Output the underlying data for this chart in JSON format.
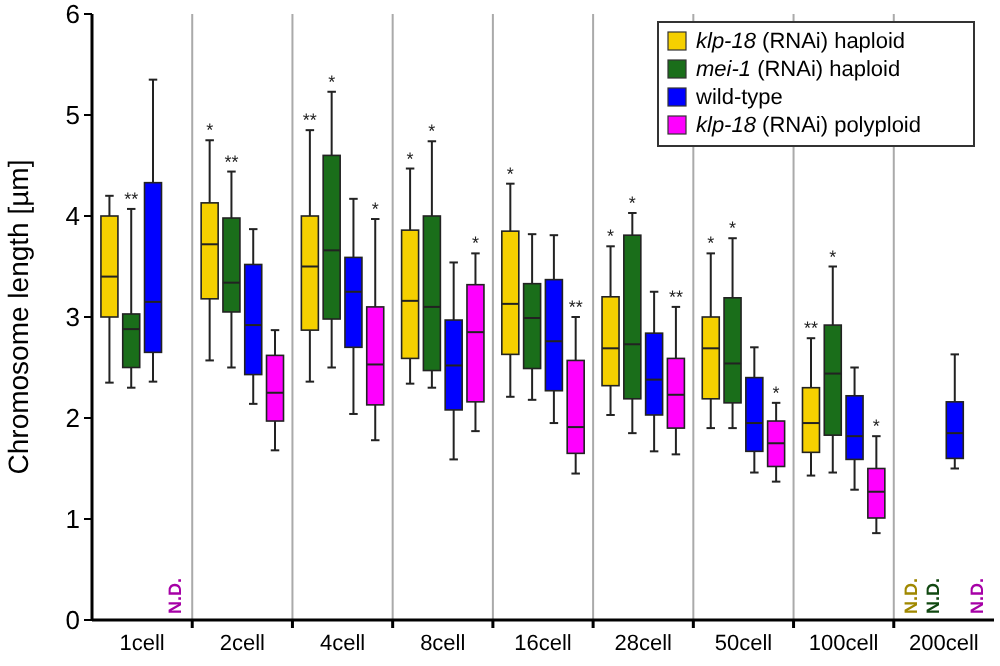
{
  "chart_data": {
    "type": "box",
    "ylabel": "Chromosome length [µm]",
    "categories": [
      "1cell",
      "2cell",
      "4cell",
      "8cell",
      "16cell",
      "28cell",
      "50cell",
      "100cell",
      "200cell"
    ],
    "ylim": [
      0,
      6
    ],
    "yticks": [
      0,
      1,
      2,
      3,
      4,
      5,
      6
    ],
    "grid": "x",
    "legend": "top right",
    "series": [
      {
        "name": "klp-18 (RNAi) haploid",
        "color": "#f5d000",
        "boxes": [
          {
            "low": 2.35,
            "q1": 3.0,
            "median": 3.4,
            "q3": 4.0,
            "high": 4.2
          },
          {
            "low": 2.57,
            "q1": 3.18,
            "median": 3.72,
            "q3": 4.13,
            "high": 4.75
          },
          {
            "low": 2.36,
            "q1": 2.87,
            "median": 3.5,
            "q3": 4.0,
            "high": 4.85
          },
          {
            "low": 2.34,
            "q1": 2.59,
            "median": 3.16,
            "q3": 3.86,
            "high": 4.47
          },
          {
            "low": 2.21,
            "q1": 2.63,
            "median": 3.13,
            "q3": 3.85,
            "high": 4.32
          },
          {
            "low": 2.03,
            "q1": 2.32,
            "median": 2.69,
            "q3": 3.2,
            "high": 3.7
          },
          {
            "low": 1.9,
            "q1": 2.19,
            "median": 2.69,
            "q3": 3.0,
            "high": 3.63
          },
          {
            "low": 1.43,
            "q1": 1.66,
            "median": 1.95,
            "q3": 2.3,
            "high": 2.79
          },
          null
        ],
        "value_labels": [
          null,
          "*",
          "**",
          "*",
          "*",
          "*",
          "*",
          "**",
          "N.D."
        ]
      },
      {
        "name": "mei-1 (RNAi) haploid",
        "color": "#1a6e1a",
        "boxes": [
          {
            "low": 2.3,
            "q1": 2.5,
            "median": 2.88,
            "q3": 3.03,
            "high": 4.07
          },
          {
            "low": 2.5,
            "q1": 3.05,
            "median": 3.34,
            "q3": 3.98,
            "high": 4.44
          },
          {
            "low": 2.5,
            "q1": 2.98,
            "median": 3.66,
            "q3": 4.6,
            "high": 5.23
          },
          {
            "low": 2.3,
            "q1": 2.47,
            "median": 3.1,
            "q3": 4.0,
            "high": 4.74
          },
          {
            "low": 2.18,
            "q1": 2.49,
            "median": 2.99,
            "q3": 3.33,
            "high": 3.82
          },
          {
            "low": 1.85,
            "q1": 2.19,
            "median": 2.73,
            "q3": 3.81,
            "high": 4.03
          },
          {
            "low": 1.9,
            "q1": 2.15,
            "median": 2.54,
            "q3": 3.19,
            "high": 3.78
          },
          {
            "low": 1.46,
            "q1": 1.83,
            "median": 2.44,
            "q3": 2.92,
            "high": 3.5
          },
          null
        ],
        "value_labels": [
          "**",
          "**",
          "*",
          "*",
          null,
          "*",
          "*",
          "*",
          "N.D."
        ]
      },
      {
        "name": "wild-type",
        "color": "#0000ff",
        "boxes": [
          {
            "low": 2.36,
            "q1": 2.65,
            "median": 3.15,
            "q3": 4.33,
            "high": 5.35
          },
          {
            "low": 2.14,
            "q1": 2.43,
            "median": 2.92,
            "q3": 3.52,
            "high": 3.87
          },
          {
            "low": 2.04,
            "q1": 2.7,
            "median": 3.25,
            "q3": 3.59,
            "high": 4.17
          },
          {
            "low": 1.59,
            "q1": 2.08,
            "median": 2.52,
            "q3": 2.97,
            "high": 3.54
          },
          {
            "low": 1.95,
            "q1": 2.27,
            "median": 2.76,
            "q3": 3.37,
            "high": 3.81
          },
          {
            "low": 1.67,
            "q1": 2.03,
            "median": 2.38,
            "q3": 2.84,
            "high": 3.25
          },
          {
            "low": 1.46,
            "q1": 1.67,
            "median": 1.95,
            "q3": 2.4,
            "high": 2.7
          },
          {
            "low": 1.29,
            "q1": 1.59,
            "median": 1.82,
            "q3": 2.22,
            "high": 2.5
          },
          {
            "low": 1.5,
            "q1": 1.6,
            "median": 1.85,
            "q3": 2.16,
            "high": 2.63
          }
        ]
      },
      {
        "name": "klp-18 (RNAi) polyploid",
        "color": "#ff00ff",
        "boxes": [
          null,
          {
            "low": 1.68,
            "q1": 1.97,
            "median": 2.25,
            "q3": 2.62,
            "high": 2.87
          },
          {
            "low": 1.78,
            "q1": 2.13,
            "median": 2.53,
            "q3": 3.1,
            "high": 3.97
          },
          {
            "low": 1.87,
            "q1": 2.16,
            "median": 2.85,
            "q3": 3.32,
            "high": 3.63
          },
          {
            "low": 1.45,
            "q1": 1.65,
            "median": 1.91,
            "q3": 2.57,
            "high": 3.0
          },
          {
            "low": 1.64,
            "q1": 1.9,
            "median": 2.23,
            "q3": 2.59,
            "high": 3.1
          },
          {
            "low": 1.37,
            "q1": 1.52,
            "median": 1.75,
            "q3": 1.97,
            "high": 2.15
          },
          {
            "low": 0.86,
            "q1": 1.01,
            "median": 1.27,
            "q3": 1.5,
            "high": 1.82
          },
          null
        ],
        "value_labels": [
          "N.D.",
          null,
          "*",
          "*",
          "**",
          "**",
          "*",
          "*",
          "N.D."
        ]
      }
    ]
  }
}
